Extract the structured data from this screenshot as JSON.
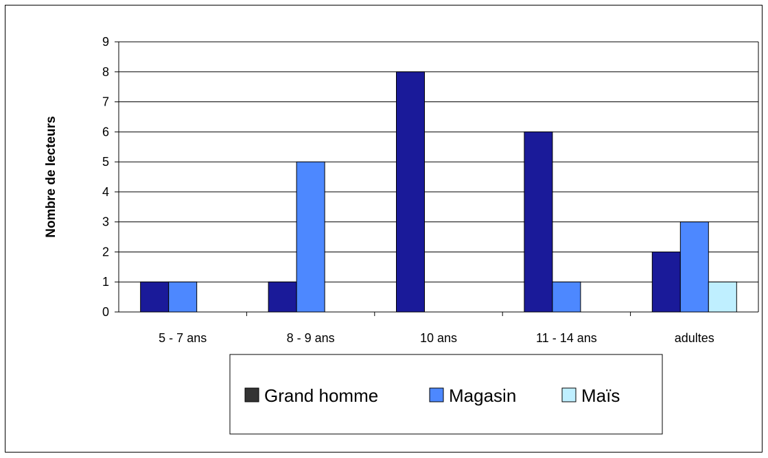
{
  "chart_data": {
    "type": "bar",
    "title": "",
    "xlabel": "",
    "ylabel": "Nombre de lecteurs",
    "categories": [
      "5 - 7 ans",
      "8 - 9 ans",
      "10 ans",
      "11 - 14 ans",
      "adultes"
    ],
    "series": [
      {
        "name": "Grand homme",
        "color": "#1A1A99",
        "legend_color": "#333333",
        "values": [
          1,
          1,
          8,
          6,
          2
        ]
      },
      {
        "name": "Magasin",
        "color": "#4D88FF",
        "legend_color": "#4D88FF",
        "values": [
          1,
          5,
          0,
          1,
          3
        ]
      },
      {
        "name": "Maïs",
        "color": "#BFEFFF",
        "legend_color": "#BFEFFF",
        "values": [
          0,
          0,
          0,
          0,
          1
        ]
      }
    ],
    "ylim": [
      0,
      9
    ],
    "yticks": [
      "0",
      "1",
      "2",
      "3",
      "4",
      "5",
      "6",
      "7",
      "8",
      "9"
    ],
    "grid": true,
    "legend_placement": "bottom"
  }
}
